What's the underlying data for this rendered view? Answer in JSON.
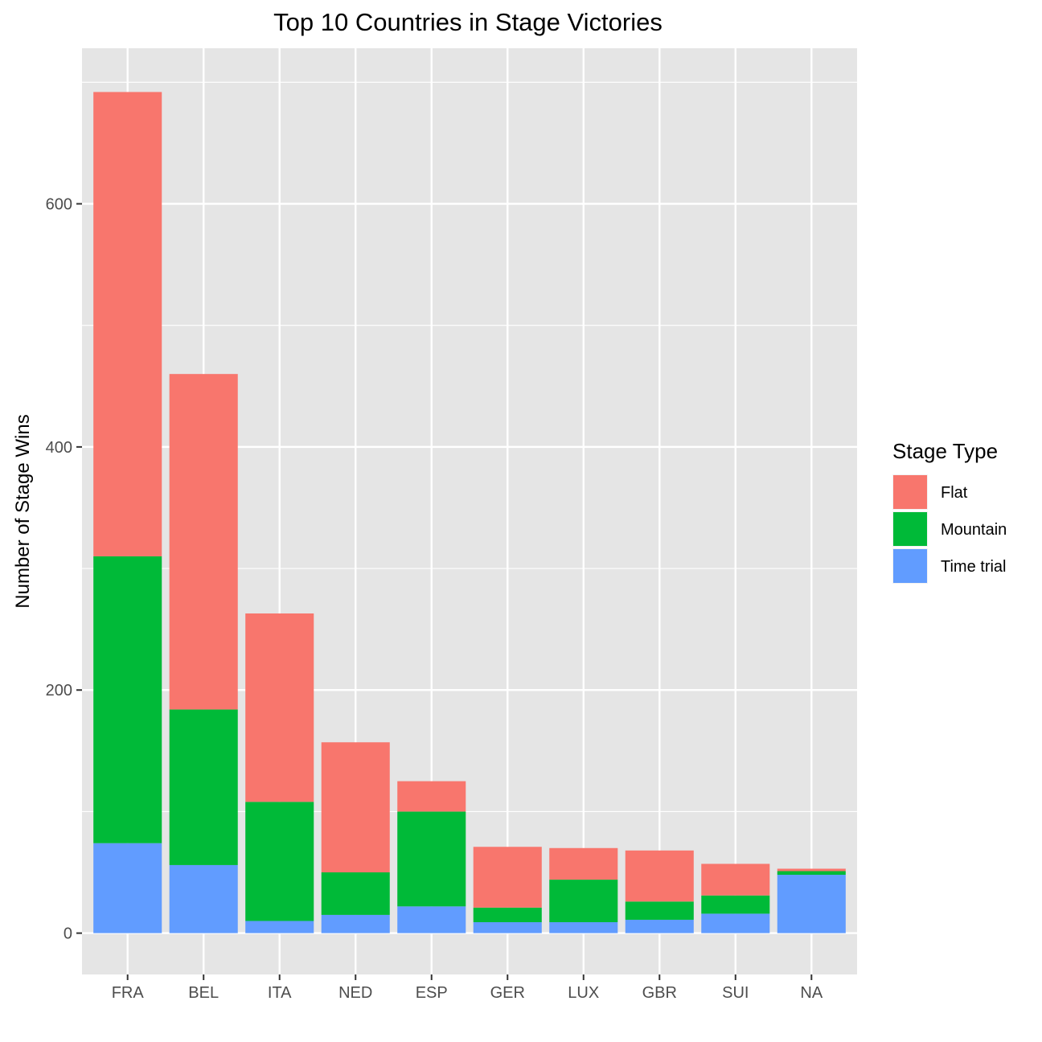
{
  "chart_data": {
    "type": "bar",
    "stacked": true,
    "title": "Top 10 Countries in Stage Victories",
    "xlabel": "",
    "ylabel": "Number of Stage Wins",
    "categories": [
      "FRA",
      "BEL",
      "ITA",
      "NED",
      "ESP",
      "GER",
      "LUX",
      "GBR",
      "SUI",
      "NA"
    ],
    "series": [
      {
        "name": "Time trial",
        "color": "#619CFF",
        "values": [
          74,
          56,
          10,
          15,
          22,
          9,
          9,
          11,
          16,
          48
        ]
      },
      {
        "name": "Mountain",
        "color": "#00BA38",
        "values": [
          236,
          128,
          98,
          35,
          78,
          12,
          35,
          15,
          15,
          3
        ]
      },
      {
        "name": "Flat",
        "color": "#F8766D",
        "values": [
          382,
          276,
          155,
          107,
          25,
          50,
          26,
          42,
          26,
          2
        ]
      }
    ],
    "ylim": [
      -34,
      728
    ],
    "yticks": [
      0,
      200,
      400,
      600
    ],
    "grid": true,
    "legend": {
      "title": "Stage Type",
      "position": "right",
      "entries": [
        {
          "name": "Flat",
          "color": "#F8766D"
        },
        {
          "name": "Mountain",
          "color": "#00BA38"
        },
        {
          "name": "Time trial",
          "color": "#619CFF"
        }
      ]
    }
  }
}
